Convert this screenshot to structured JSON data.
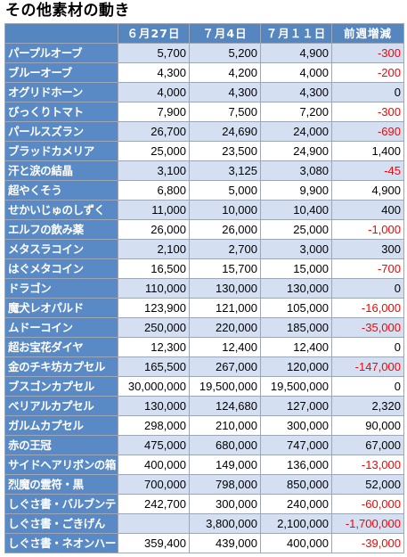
{
  "title": "その他素材の動き",
  "table": {
    "headers": [
      "",
      "６月27日",
      "７月4日",
      "７月１１日",
      "前週増減"
    ],
    "rows": [
      {
        "name": "パープルオーブ",
        "jun27": "5,700",
        "jul4": "5,200",
        "jul11": "4,900",
        "change": "-300"
      },
      {
        "name": "ブルーオーブ",
        "jun27": "4,300",
        "jul4": "4,200",
        "jul11": "4,000",
        "change": "-200"
      },
      {
        "name": "オグリドホーン",
        "jun27": "4,000",
        "jul4": "4,300",
        "jul11": "4,300",
        "change": "0"
      },
      {
        "name": "びっくりトマト",
        "jun27": "7,900",
        "jul4": "7,500",
        "jul11": "7,200",
        "change": "-300"
      },
      {
        "name": "パールスズラン",
        "jun27": "26,700",
        "jul4": "24,690",
        "jul11": "24,000",
        "change": "-690"
      },
      {
        "name": "ブラッドカメリア",
        "jun27": "25,000",
        "jul4": "23,500",
        "jul11": "24,900",
        "change": "1,400"
      },
      {
        "name": "汗と涙の結晶",
        "jun27": "3,100",
        "jul4": "3,125",
        "jul11": "3,080",
        "change": "-45"
      },
      {
        "name": "超やくそう",
        "jun27": "6,800",
        "jul4": "5,000",
        "jul11": "9,900",
        "change": "4,900"
      },
      {
        "name": "せかいじゅのしずく",
        "jun27": "11,000",
        "jul4": "10,000",
        "jul11": "10,400",
        "change": "400"
      },
      {
        "name": "エルフの飲み薬",
        "jun27": "26,000",
        "jul4": "26,000",
        "jul11": "25,000",
        "change": "-1,000"
      },
      {
        "name": "メタスラコイン",
        "jun27": "2,100",
        "jul4": "2,700",
        "jul11": "3,000",
        "change": "300"
      },
      {
        "name": "はぐメタコイン",
        "jun27": "16,500",
        "jul4": "15,700",
        "jul11": "15,000",
        "change": "-700"
      },
      {
        "name": "ドラゴン",
        "jun27": "110,000",
        "jul4": "130,000",
        "jul11": "130,000",
        "change": "0"
      },
      {
        "name": "魔犬レオパルド",
        "jun27": "123,900",
        "jul4": "121,000",
        "jul11": "105,000",
        "change": "-16,000"
      },
      {
        "name": "ムドーコイン",
        "jun27": "250,000",
        "jul4": "220,000",
        "jul11": "185,000",
        "change": "-35,000"
      },
      {
        "name": "超お宝花ダイヤ",
        "jun27": "12,300",
        "jul4": "12,400",
        "jul11": "12,400",
        "change": "0"
      },
      {
        "name": "金のチキ坊カプセル",
        "jun27": "165,500",
        "jul4": "267,000",
        "jul11": "120,000",
        "change": "-147,000"
      },
      {
        "name": "ブスゴンカプセル",
        "jun27": "30,000,000",
        "jul4": "19,500,000",
        "jul11": "19,500,000",
        "change": "0"
      },
      {
        "name": "ベリアルカプセル",
        "jun27": "130,000",
        "jul4": "124,680",
        "jul11": "127,000",
        "change": "2,320"
      },
      {
        "name": "ガルムカプセル",
        "jun27": "298,000",
        "jul4": "210,000",
        "jul11": "300,000",
        "change": "90,000"
      },
      {
        "name": "赤の王冠",
        "jun27": "475,000",
        "jul4": "680,000",
        "jul11": "747,000",
        "change": "67,000"
      },
      {
        "name": "サイドヘアリボンの箱",
        "jun27": "400,000",
        "jul4": "149,000",
        "jul11": "136,000",
        "change": "-13,000"
      },
      {
        "name": "烈魔の霊符・黒",
        "jun27": "700,000",
        "jul4": "798,000",
        "jul11": "850,000",
        "change": "52,000"
      },
      {
        "name": "しぐさ書・バルブンテ",
        "jun27": "242,700",
        "jul4": "300,000",
        "jul11": "240,000",
        "change": "-60,000"
      },
      {
        "name": "しぐさ書・ごきげん",
        "jun27": "",
        "jul4": "3,800,000",
        "jul11": "2,100,000",
        "change": "-1,700,000"
      },
      {
        "name": "しぐさ書・ネオンハート",
        "jun27": "359,400",
        "jul4": "439,000",
        "jul11": "400,000",
        "change": "-39,000"
      }
    ]
  },
  "colors": {
    "header_bg": "#5586c0",
    "name_bg": "#5a8ac5",
    "stripe_bg": "#d4e0f1",
    "negative_text": "#ff0000"
  }
}
